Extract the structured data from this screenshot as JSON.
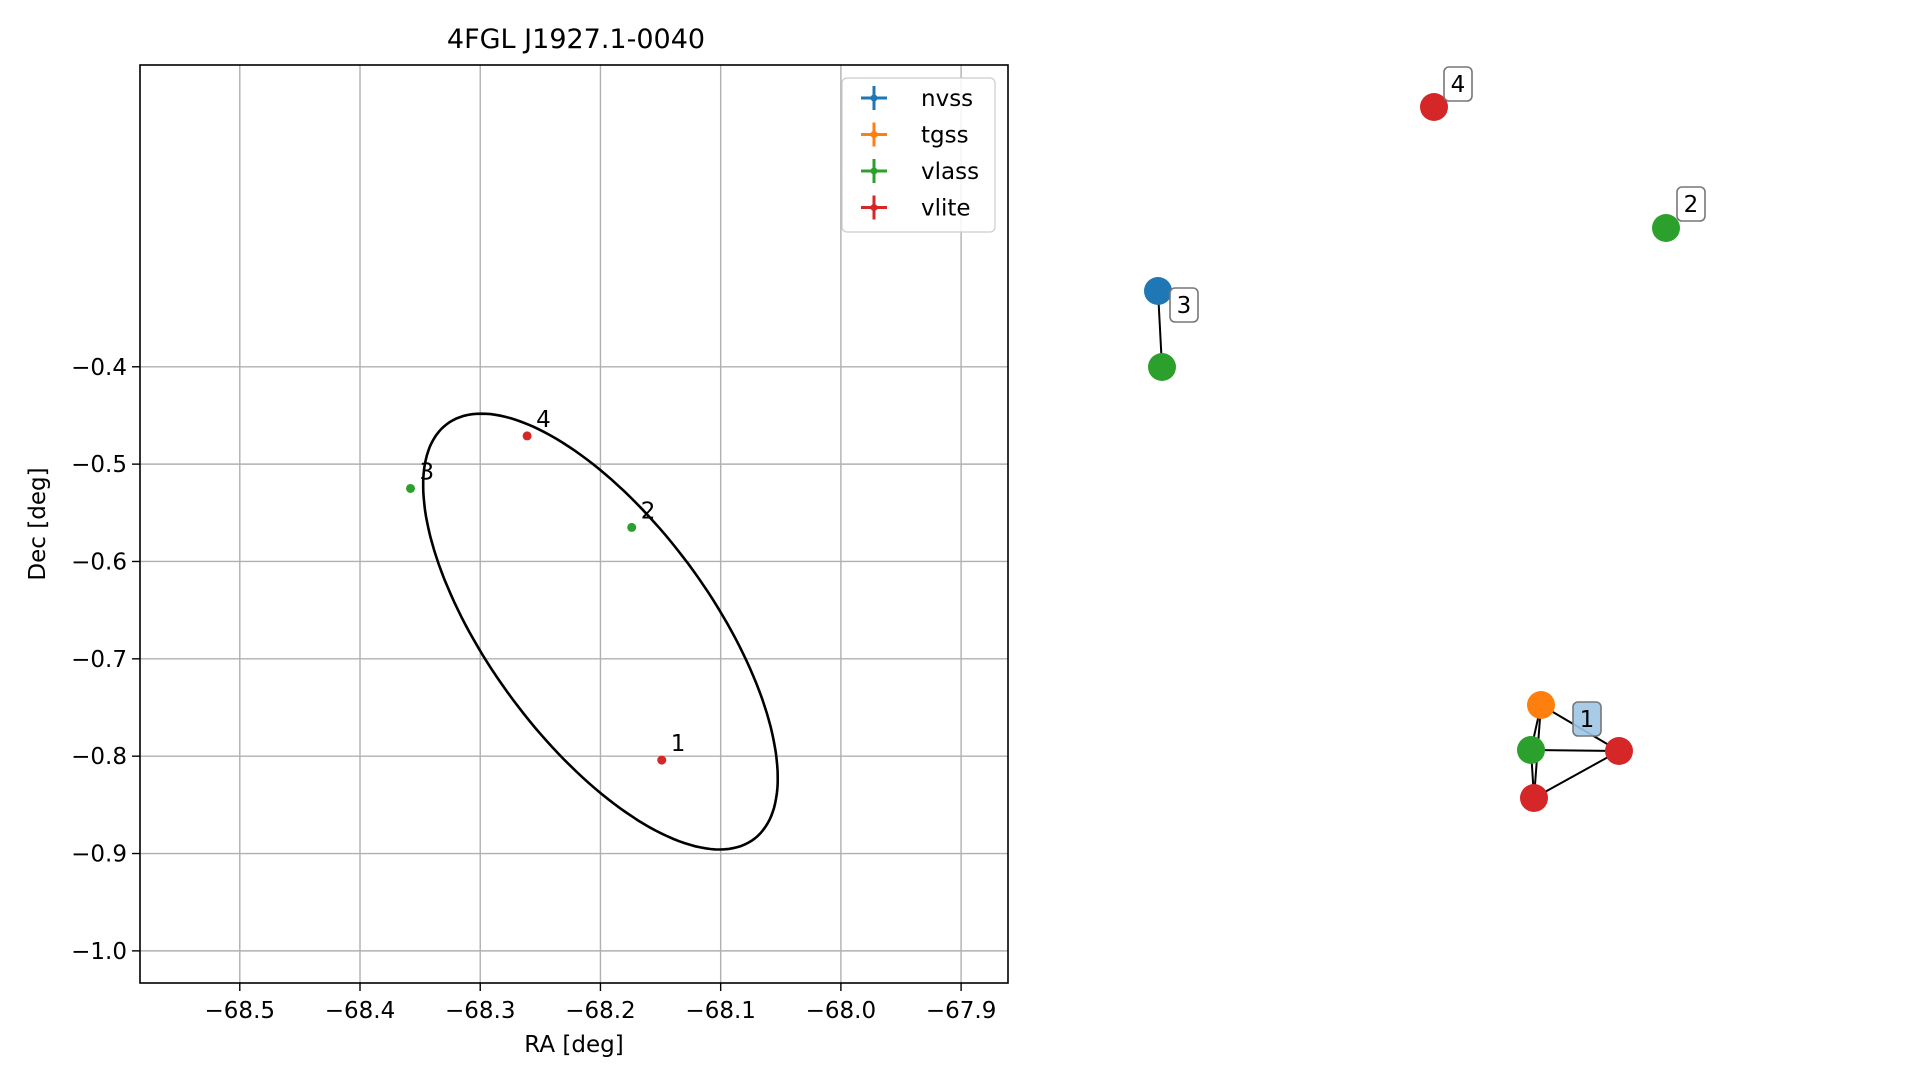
{
  "chart_data": [
    {
      "type": "scatter",
      "title": "4FGL J1927.1-0040",
      "xlabel": "RA [deg]",
      "ylabel": "Dec [deg]",
      "xlim": [
        -68.583,
        -67.861
      ],
      "ylim": [
        -1.033,
        -0.09
      ],
      "x_inverted": false,
      "grid": true,
      "xticks": [
        -68.5,
        -68.4,
        -68.3,
        -68.2,
        -68.1,
        -68.0,
        -67.9
      ],
      "xtick_labels": [
        "−68.5",
        "−68.4",
        "−68.3",
        "−68.2",
        "−68.1",
        "−68.0",
        "−67.9"
      ],
      "yticks": [
        -0.4,
        -0.5,
        -0.6,
        -0.7,
        -0.8,
        -0.9,
        -1.0
      ],
      "ytick_labels": [
        "−0.4",
        "−0.5",
        "−0.6",
        "−0.7",
        "−0.8",
        "−0.9",
        "−1.0"
      ],
      "legend_position": "top-right",
      "legend": [
        {
          "label": "nvss",
          "color": "#1f77b4"
        },
        {
          "label": "tgss",
          "color": "#ff7f0e"
        },
        {
          "label": "vlass",
          "color": "#2ca02c"
        },
        {
          "label": "vlite",
          "color": "#d62728"
        }
      ],
      "points": [
        {
          "label": "1",
          "survey": "vlite",
          "x": -68.149,
          "y": -0.804,
          "color": "#d62728"
        },
        {
          "label": "2",
          "survey": "vlass",
          "x": -68.174,
          "y": -0.565,
          "color": "#2ca02c"
        },
        {
          "label": "3",
          "survey": "vlass",
          "x": -68.358,
          "y": -0.525,
          "color": "#2ca02c"
        },
        {
          "label": "4",
          "survey": "vlite",
          "x": -68.261,
          "y": -0.471,
          "color": "#d62728"
        }
      ],
      "ellipse": {
        "center_x": -68.2,
        "center_y": -0.672,
        "semi_major": 0.2495,
        "semi_minor": 0.098,
        "angle_deg": -61.3,
        "color": "#000000"
      }
    },
    {
      "type": "graph",
      "nodes": [
        {
          "id": "n1",
          "color": "#2ca02c"
        },
        {
          "id": "n2",
          "color": "#1f77b4"
        },
        {
          "id": "n3",
          "color": "#2ca02c"
        },
        {
          "id": "n4",
          "color": "#d62728"
        },
        {
          "id": "n5",
          "color": "#ff7f0e"
        },
        {
          "id": "n6",
          "color": "#2ca02c"
        },
        {
          "id": "n7",
          "color": "#d62728"
        },
        {
          "id": "n8",
          "color": "#d62728"
        }
      ],
      "edges": [
        [
          "n2",
          "n3"
        ],
        [
          "n5",
          "n6"
        ],
        [
          "n5",
          "n7"
        ],
        [
          "n5",
          "n8"
        ],
        [
          "n6",
          "n7"
        ],
        [
          "n6",
          "n8"
        ],
        [
          "n7",
          "n8"
        ]
      ],
      "labels": [
        {
          "text": "2",
          "box_color": "#ffffff",
          "border_color": "#777777"
        },
        {
          "text": "3",
          "box_color": "#ffffff",
          "border_color": "#777777"
        },
        {
          "text": "4",
          "box_color": "#ffffff",
          "border_color": "#777777"
        },
        {
          "text": "1",
          "box_color": "#9ec5e6",
          "border_color": "#777777"
        }
      ]
    }
  ]
}
